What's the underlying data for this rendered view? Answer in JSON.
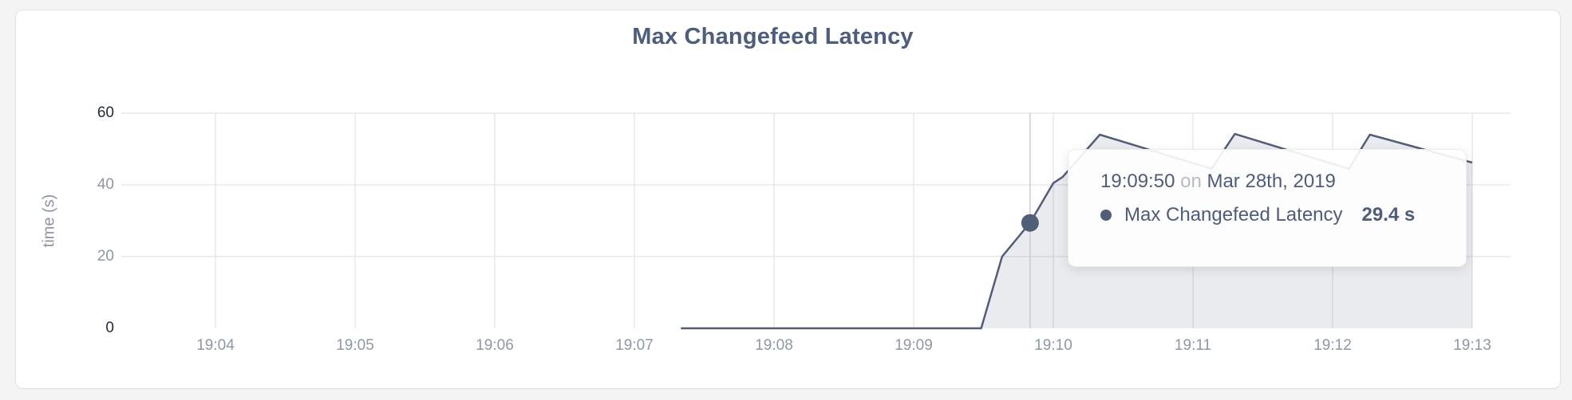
{
  "card": {
    "title": "Max Changefeed Latency"
  },
  "tooltip": {
    "time": "19:09:50",
    "conjunction": "on",
    "date": "Mar 28th, 2019",
    "series_label": "Max Changefeed Latency",
    "value": "29.4 s"
  },
  "colors": {
    "accent_line": "#515e7a",
    "area_fill": "rgba(81,94,122,0.12)",
    "grid": "#e8e8e9",
    "hover_guideline": "#c9ccd2",
    "tick_dark": "#232c3e",
    "tick_light": "#8f97a7",
    "title": "#4c5d80"
  },
  "chart_data": {
    "type": "area",
    "title": "Max Changefeed Latency",
    "xlabel": "",
    "ylabel": "time (s)",
    "ylim": [
      0,
      60
    ],
    "y_ticks": [
      0,
      20,
      40,
      60
    ],
    "y_ticks_dark": [
      0,
      60
    ],
    "x_ticks": [
      "19:04",
      "19:05",
      "19:06",
      "19:07",
      "19:08",
      "19:09",
      "19:10",
      "19:11",
      "19:12",
      "19:13"
    ],
    "grid": true,
    "legend_position": "none",
    "series": [
      {
        "name": "Max Changefeed Latency",
        "unit": "s",
        "points": [
          [
            "19:07:20",
            0
          ],
          [
            "19:09:29",
            0
          ],
          [
            "19:09:38",
            20
          ],
          [
            "19:09:50",
            29.4
          ],
          [
            "19:10:00",
            40.5
          ],
          [
            "19:10:04",
            42.2
          ],
          [
            "19:10:20",
            54
          ],
          [
            "19:11:08",
            44.5
          ],
          [
            "19:11:18",
            54.2
          ],
          [
            "19:12:07",
            44.5
          ],
          [
            "19:12:16",
            54
          ],
          [
            "19:13:00",
            46.2
          ]
        ]
      }
    ],
    "hover_point": {
      "time": "19:09:50",
      "value": 29.4
    }
  }
}
